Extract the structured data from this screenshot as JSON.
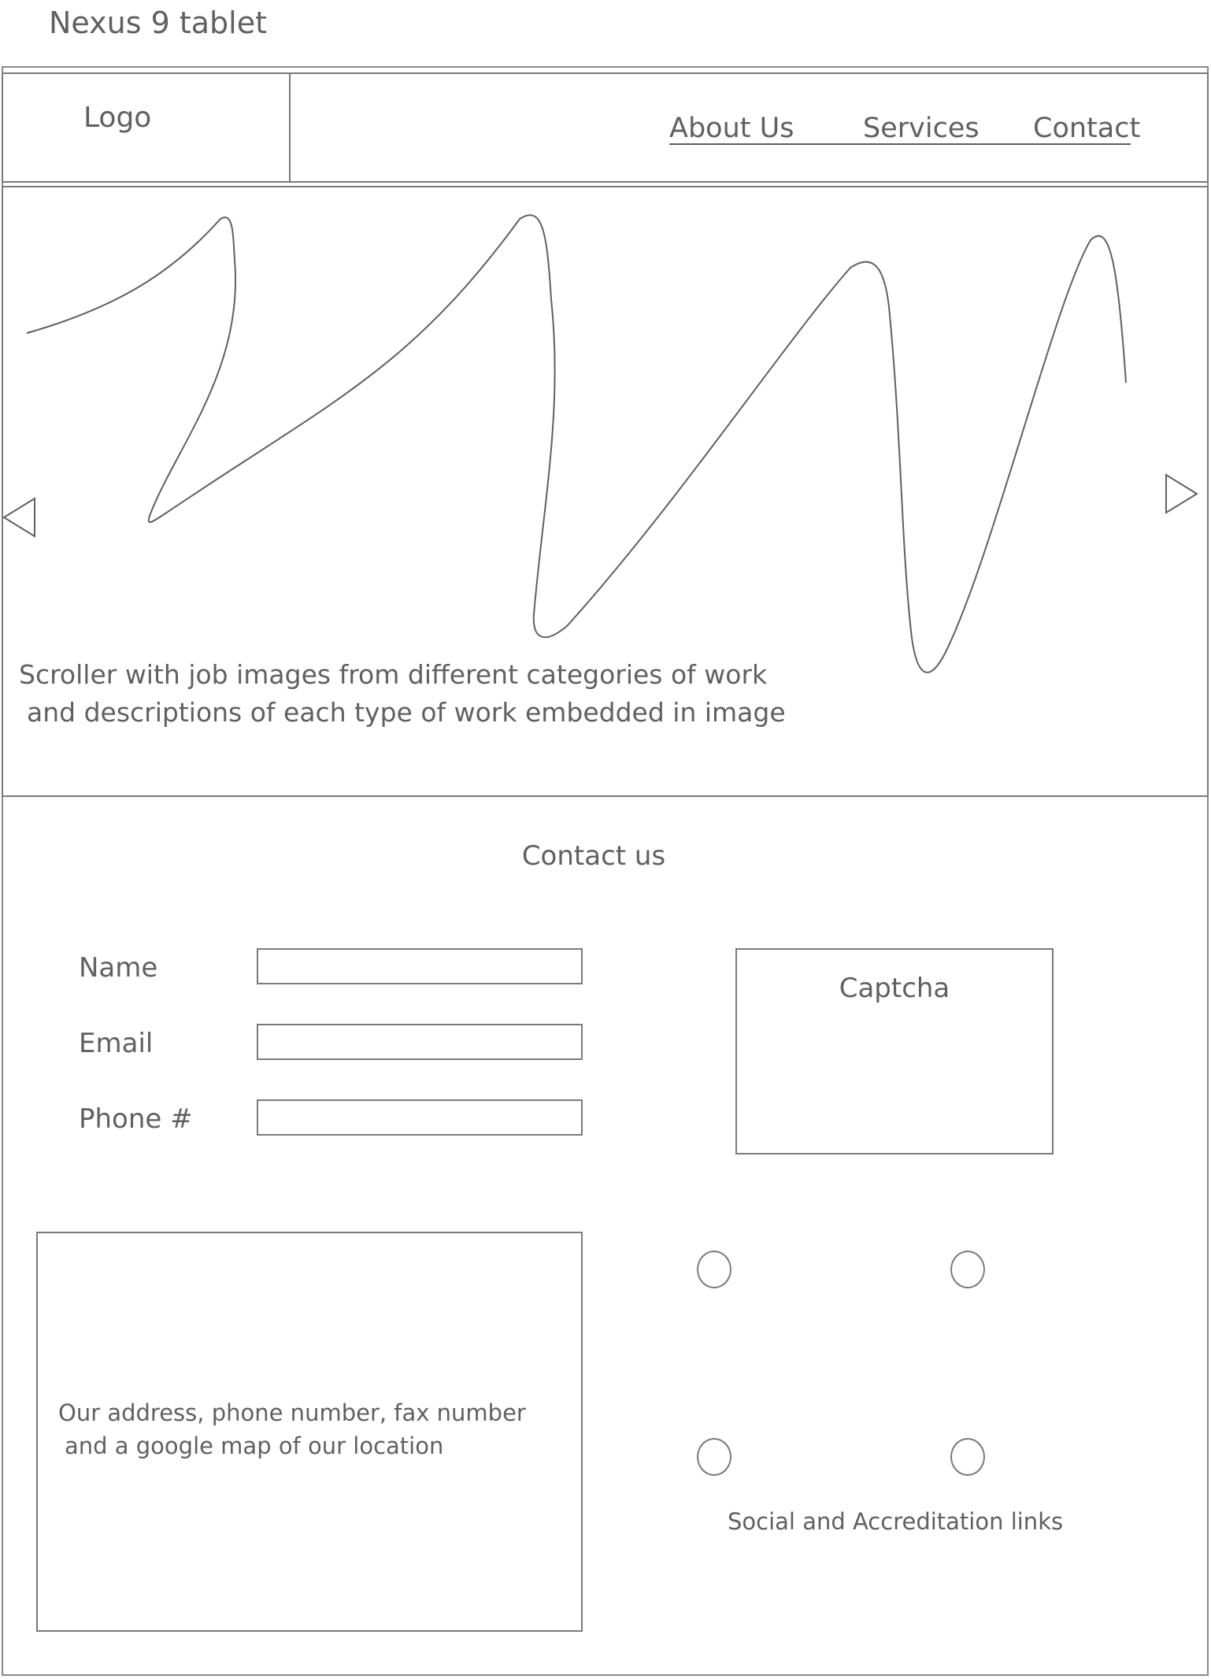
{
  "device_label": "Nexus 9 tablet",
  "header": {
    "logo": "Logo",
    "nav": [
      {
        "label": "About Us"
      },
      {
        "label": "Services"
      },
      {
        "label": "Contact"
      }
    ]
  },
  "hero": {
    "caption_line_1": "Scroller with job images from different categories of work",
    "caption_line_2": "and descriptions of each type of work embedded in image",
    "prev_icon": "triangle-left-icon",
    "next_icon": "triangle-right-icon"
  },
  "contact": {
    "title": "Contact us",
    "fields": [
      {
        "label": "Name",
        "value": ""
      },
      {
        "label": "Email",
        "value": ""
      },
      {
        "label": "Phone #",
        "value": ""
      }
    ],
    "captcha_label": "Captcha"
  },
  "address": {
    "line_1": "Our address, phone number, fax number",
    "line_2": "and a google map of our location"
  },
  "social": {
    "label": "Social and Accreditation links",
    "link_count": 4
  },
  "colors": {
    "stroke": "#7a7a7a",
    "text": "#606060",
    "background": "#ffffff"
  }
}
